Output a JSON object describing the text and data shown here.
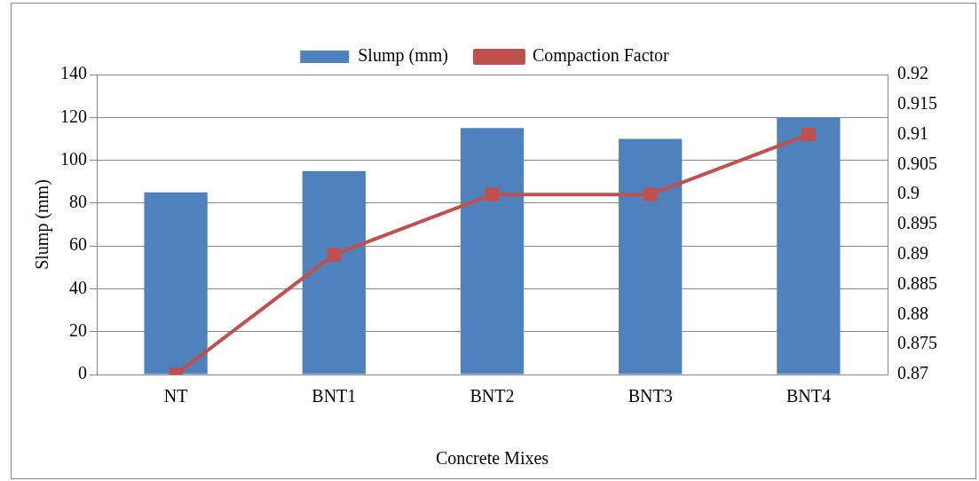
{
  "chart_data": {
    "type": "bar",
    "xlabel": "Concrete Mixes",
    "ylabel": "Slump (mm)",
    "categories": [
      "NT",
      "BNT1",
      "BNT2",
      "BNT3",
      "BNT4"
    ],
    "series": [
      {
        "name": "Slump (mm)",
        "color": "#4f81bd",
        "values": [
          85,
          95,
          115,
          110,
          120
        ]
      },
      {
        "name": "Compaction Factor",
        "type": "line",
        "axis": "y2",
        "color": "#c0504d",
        "marker": "square",
        "values": [
          0.87,
          0.89,
          0.9,
          0.9,
          0.91
        ]
      }
    ],
    "ylim": [
      0,
      140
    ],
    "yticks": [
      0,
      20,
      40,
      60,
      80,
      100,
      120,
      140
    ],
    "y2lim": [
      0.87,
      0.92
    ],
    "y2ticks": [
      0.87,
      0.875,
      0.88,
      0.885,
      0.89,
      0.895,
      0.9,
      0.905,
      0.91,
      0.915,
      0.92
    ],
    "grid": "y",
    "legend": "top"
  }
}
